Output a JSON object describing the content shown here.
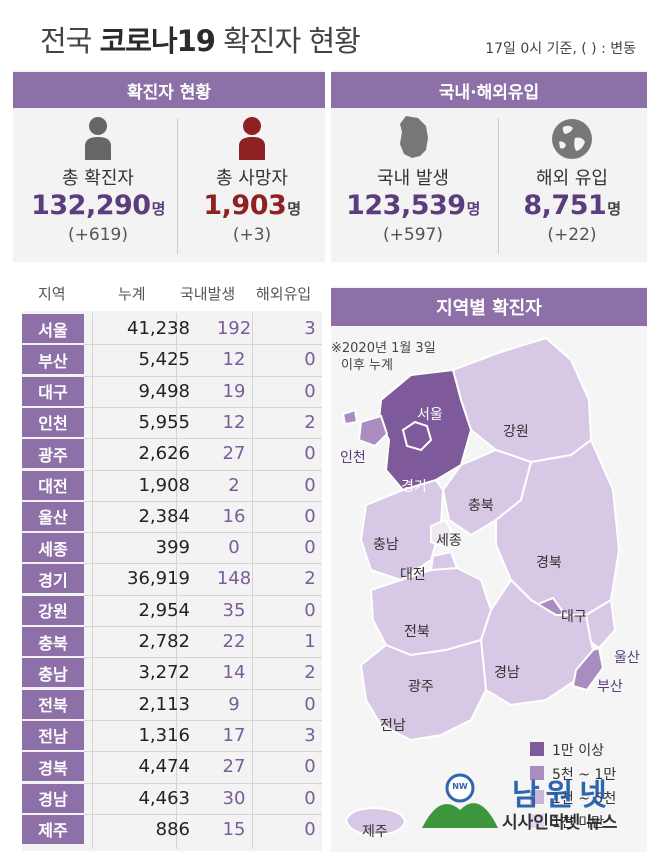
{
  "header": {
    "title_plain": "전국 ",
    "title_bold": "코로나19",
    "title_rest": " 확진자 현황",
    "note": "17일  0시 기준, ( ) : 변동"
  },
  "summary": {
    "left_header": "확진자 현황",
    "right_header": "국내·해외유입",
    "total_cases": {
      "label": "총 확진자",
      "value": "132,290",
      "unit": "명",
      "change": "(+619)"
    },
    "total_deaths": {
      "label": "총 사망자",
      "value": "1,903",
      "unit": "명",
      "change": "(+3)"
    },
    "domestic": {
      "label": "국내 발생",
      "value": "123,539",
      "unit": "명",
      "change": "(+597)"
    },
    "overseas": {
      "label": "해외 유입",
      "value": "8,751",
      "unit": "명",
      "change": "(+22)"
    }
  },
  "table": {
    "headers": [
      "지역",
      "누계",
      "국내발생",
      "해외유입"
    ],
    "rows": [
      {
        "region": "서울",
        "total": "41,238",
        "domestic": "192",
        "overseas": "3"
      },
      {
        "region": "부산",
        "total": "5,425",
        "domestic": "12",
        "overseas": "0"
      },
      {
        "region": "대구",
        "total": "9,498",
        "domestic": "19",
        "overseas": "0"
      },
      {
        "region": "인천",
        "total": "5,955",
        "domestic": "12",
        "overseas": "2"
      },
      {
        "region": "광주",
        "total": "2,626",
        "domestic": "27",
        "overseas": "0"
      },
      {
        "region": "대전",
        "total": "1,908",
        "domestic": "2",
        "overseas": "0"
      },
      {
        "region": "울산",
        "total": "2,384",
        "domestic": "16",
        "overseas": "0"
      },
      {
        "region": "세종",
        "total": "399",
        "domestic": "0",
        "overseas": "0"
      },
      {
        "region": "경기",
        "total": "36,919",
        "domestic": "148",
        "overseas": "2"
      },
      {
        "region": "강원",
        "total": "2,954",
        "domestic": "35",
        "overseas": "0"
      },
      {
        "region": "충북",
        "total": "2,782",
        "domestic": "22",
        "overseas": "1"
      },
      {
        "region": "충남",
        "total": "3,272",
        "domestic": "14",
        "overseas": "2"
      },
      {
        "region": "전북",
        "total": "2,113",
        "domestic": "9",
        "overseas": "0"
      },
      {
        "region": "전남",
        "total": "1,316",
        "domestic": "17",
        "overseas": "3"
      },
      {
        "region": "경북",
        "total": "4,474",
        "domestic": "27",
        "overseas": "0"
      },
      {
        "region": "경남",
        "total": "4,463",
        "domestic": "30",
        "overseas": "0"
      },
      {
        "region": "제주",
        "total": "886",
        "domestic": "15",
        "overseas": "0"
      }
    ]
  },
  "map": {
    "header": "지역별 확진자",
    "note_line1": "※2020년 1월 3일",
    "note_line2": "이후 누계",
    "labels": {
      "seoul": "서울",
      "incheon": "인천",
      "gyeonggi": "경기",
      "gangwon": "강원",
      "chungbuk": "충북",
      "sejong": "세종",
      "chungnam": "충남",
      "daejeon": "대전",
      "gyeongbuk": "경북",
      "daegu": "대구",
      "jeonbuk": "전북",
      "ulsan": "울산",
      "busan": "부산",
      "gyeongnam": "경남",
      "gwangju": "광주",
      "jeonnam": "전남",
      "jeju": "제주"
    },
    "legend": [
      "1만 이상",
      "5천 ~ 1만",
      "1천 ~ 5천",
      "1천 미만"
    ],
    "colors": {
      "high": "#7f5a9b",
      "mid": "#a98cc0",
      "low": "#c8b5d9",
      "lowest": "#e3d8ee"
    }
  },
  "logo": {
    "name": "남원넷",
    "tagline": "시사인터넷 뉴스",
    "badge": "NW"
  },
  "icons": {
    "total_cases": "person-icon",
    "total_deaths": "person-icon",
    "domestic": "korea-map-icon",
    "overseas": "globe-icon"
  },
  "colors": {
    "accent": "#8d70a8",
    "dark_purple": "#5b3c7d",
    "dark_red": "#8e2123"
  }
}
